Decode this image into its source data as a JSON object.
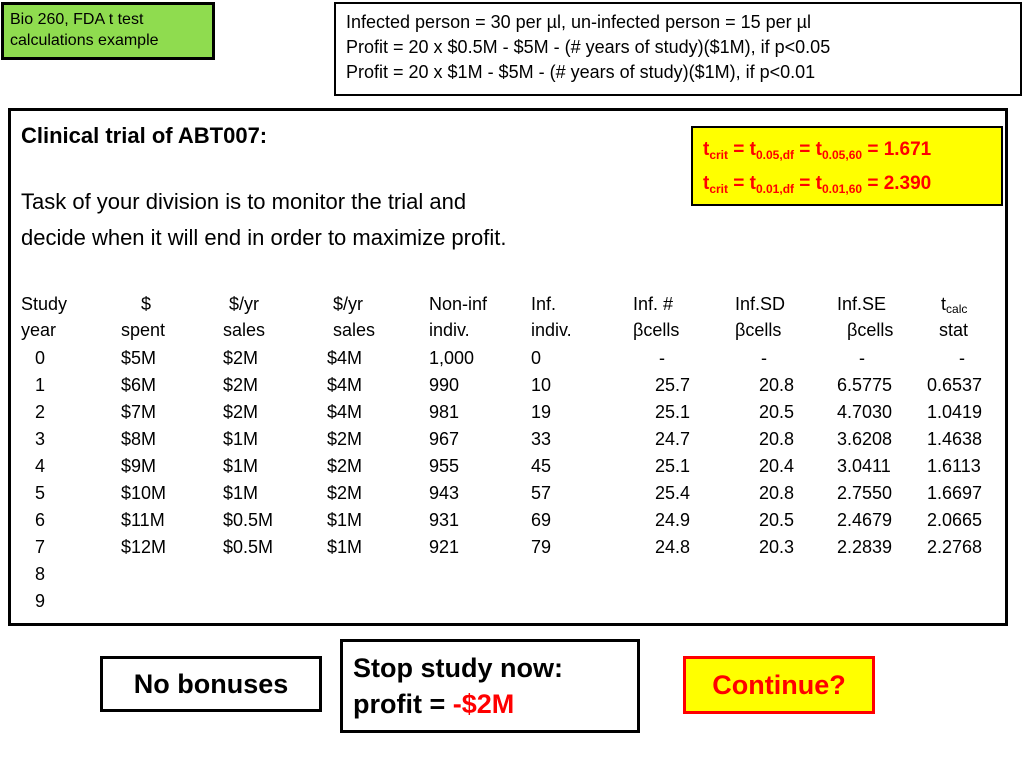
{
  "label": {
    "line1": "Bio 260, FDA t test",
    "line2": "calculations example"
  },
  "formulas": [
    "Infected person = 30 per µl, un-infected person = 15 per µl",
    "Profit = 20 x $0.5M - $5M - (# years of study)($1M), if p<0.05",
    "Profit = 20 x $1M - $5M - (# years of study)($1M), if p<0.01"
  ],
  "main": {
    "title": "Clinical trial of ABT007:",
    "task_line1": "Task of your division is to monitor the trial and",
    "task_line2": "decide when it will end in order to maximize profit."
  },
  "crit": [
    {
      "base": "t",
      "sub1": "crit",
      "eq1": " = t",
      "sub2": "0.05,df",
      "eq2": " = t",
      "sub3": "0.05,60",
      "value": " = 1.671"
    },
    {
      "base": "t",
      "sub1": "crit",
      "eq1": " = t",
      "sub2": "0.01,df",
      "eq2": " = t",
      "sub3": "0.01,60",
      "value": " = 2.390"
    }
  ],
  "table": {
    "headers_row1": [
      "Study",
      "$",
      "$/yr",
      "$/yr",
      "Non-inf",
      "Inf.",
      "Inf. #",
      "Inf.SD",
      "Inf.SE",
      "t"
    ],
    "tcalc_sub": "calc",
    "headers_row2": [
      "year",
      "spent",
      "sales",
      "sales",
      "indiv.",
      "indiv.",
      "βcells",
      "βcells",
      "βcells",
      "stat"
    ],
    "rows": [
      [
        "0",
        "$5M",
        "$2M",
        "$4M",
        "1,000",
        "0",
        "-",
        "-",
        "-",
        "-"
      ],
      [
        "1",
        "$6M",
        "$2M",
        "$4M",
        "990",
        "10",
        "25.7",
        "20.8",
        "6.5775",
        "0.6537"
      ],
      [
        "2",
        "$7M",
        "$2M",
        "$4M",
        "981",
        "19",
        "25.1",
        "20.5",
        "4.7030",
        "1.0419"
      ],
      [
        "3",
        "$8M",
        "$1M",
        "$2M",
        "967",
        "33",
        "24.7",
        "20.8",
        "3.6208",
        "1.4638"
      ],
      [
        "4",
        "$9M",
        "$1M",
        "$2M",
        "955",
        "45",
        "25.1",
        "20.4",
        "3.0411",
        "1.6113"
      ],
      [
        "5",
        "$10M",
        "$1M",
        "$2M",
        "943",
        "57",
        "25.4",
        "20.8",
        "2.7550",
        "1.6697"
      ],
      [
        "6",
        "$11M",
        "$0.5M",
        "$1M",
        "931",
        "69",
        "24.9",
        "20.5",
        "2.4679",
        "2.0665"
      ],
      [
        "7",
        "$12M",
        "$0.5M",
        "$1M",
        "921",
        "79",
        "24.8",
        "20.3",
        "2.2839",
        "2.2768"
      ],
      [
        "8",
        "",
        "",
        "",
        "",
        "",
        "",
        "",
        "",
        ""
      ],
      [
        "9",
        "",
        "",
        "",
        "",
        "",
        "",
        "",
        "",
        ""
      ]
    ]
  },
  "buttons": {
    "no_bonuses": "No bonuses",
    "stop_line1": "Stop study now:",
    "stop_line2_prefix": "profit = ",
    "stop_line2_value": "-$2M",
    "continue": "Continue?"
  }
}
